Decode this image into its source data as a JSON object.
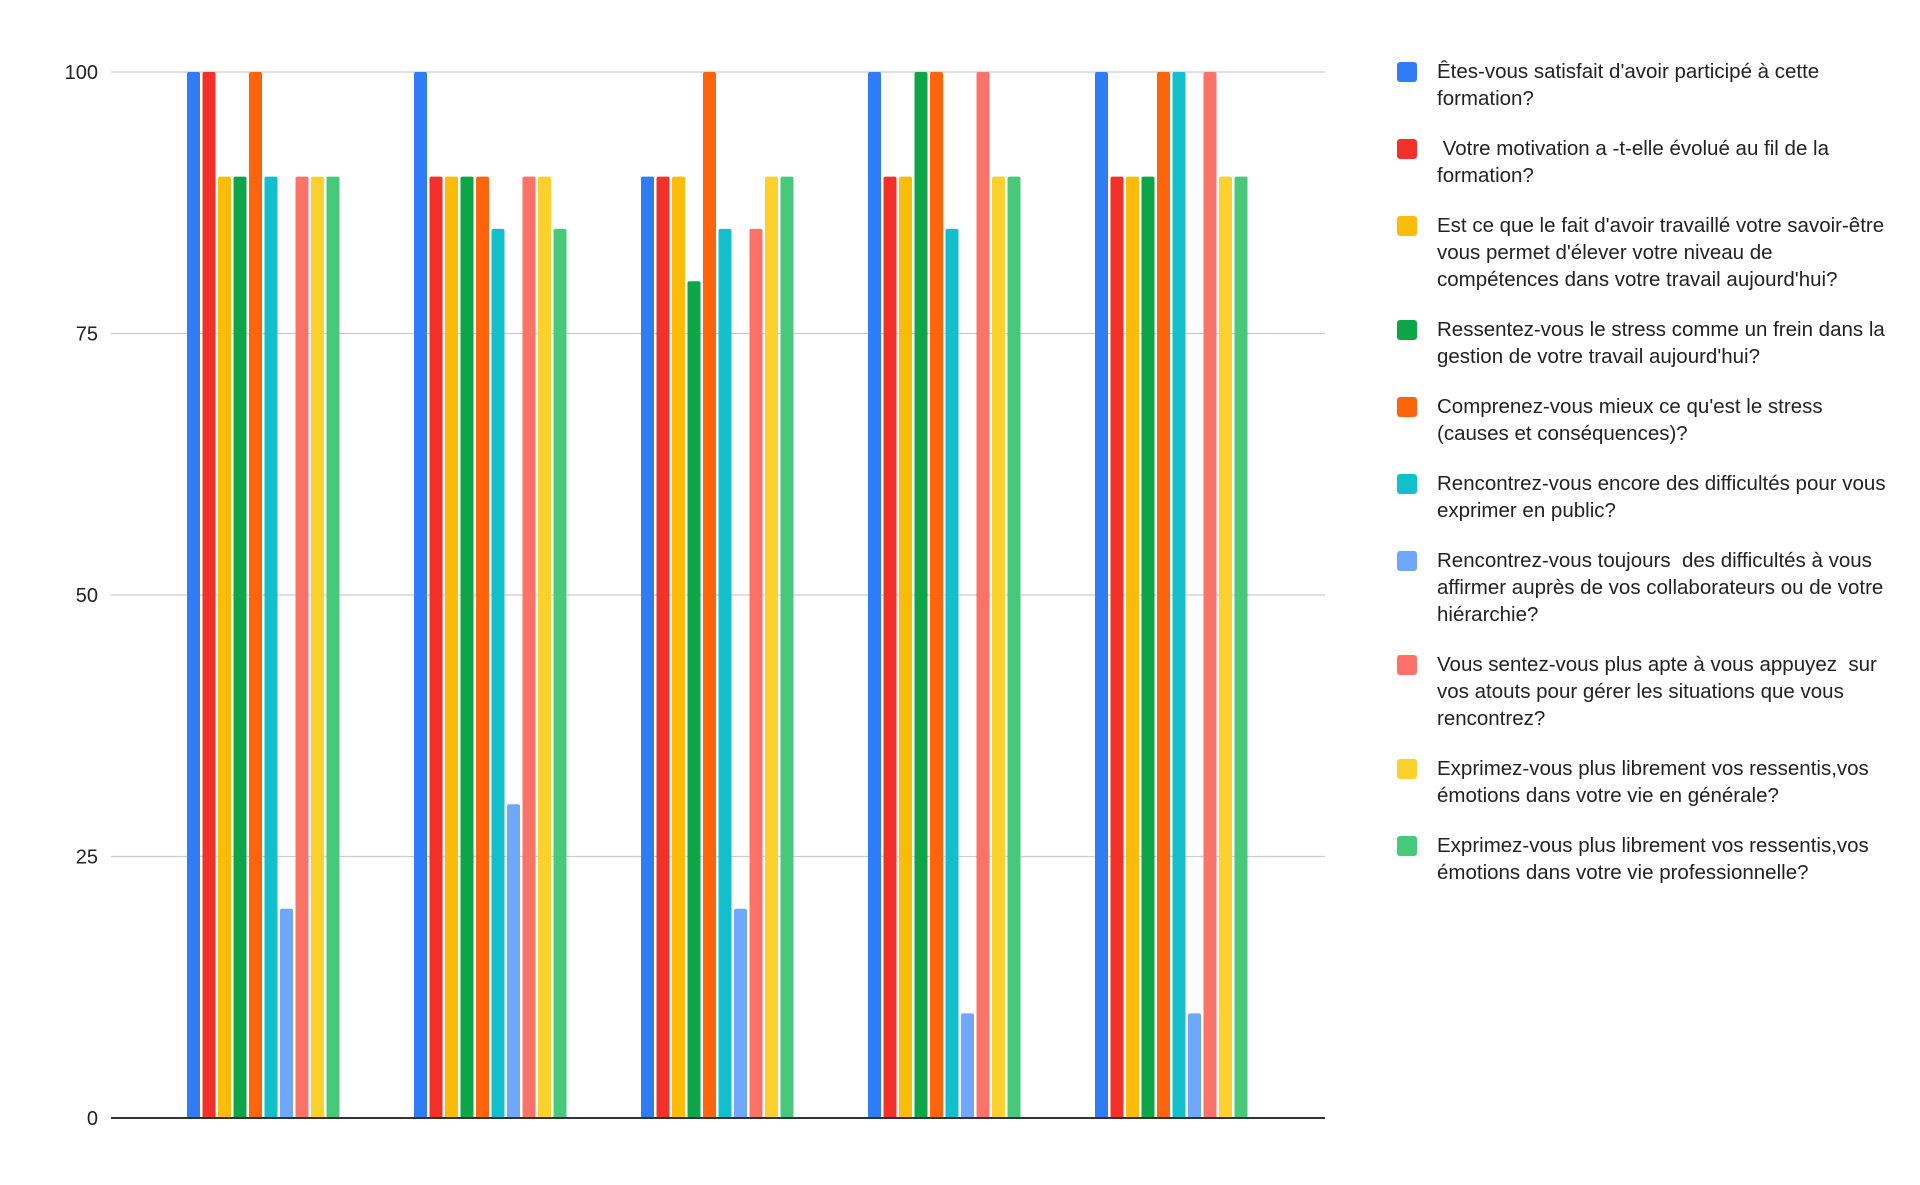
{
  "chart_data": {
    "type": "bar",
    "title": "",
    "xlabel": "",
    "ylabel": "",
    "ylim": [
      0,
      100
    ],
    "yticks": [
      "0",
      "25",
      "50",
      "75",
      "100"
    ],
    "grid": true,
    "legend_position": "right",
    "categories": [
      "",
      "",
      "",
      "",
      ""
    ],
    "series": [
      {
        "name": "Êtes-vous satisfait d'avoir participé à cette formation?",
        "color": "#2f7cf6",
        "values": [
          100,
          100,
          90,
          100,
          100
        ]
      },
      {
        "name": " Votre motivation a -t-elle évolué au fil de la formation?",
        "color": "#f4302b",
        "values": [
          100,
          90,
          90,
          90,
          90
        ]
      },
      {
        "name": "Est ce que le fait d'avoir travaillé votre savoir-être vous permet d'élever votre niveau de compétences dans votre travail aujourd'hui?",
        "color": "#fbbc09",
        "values": [
          90,
          90,
          90,
          90,
          90
        ]
      },
      {
        "name": "Ressentez-vous le stress comme un frein dans la gestion de votre travail aujourd'hui?",
        "color": "#0ea448",
        "values": [
          90,
          90,
          80,
          100,
          90
        ]
      },
      {
        "name": "Comprenez-vous mieux ce qu'est le stress (causes et conséquences)?",
        "color": "#fd640c",
        "values": [
          100,
          90,
          100,
          100,
          100
        ]
      },
      {
        "name": "Rencontrez-vous encore des difficultés pour vous exprimer en public?",
        "color": "#13bfcb",
        "values": [
          90,
          85,
          85,
          85,
          100
        ]
      },
      {
        "name": "Rencontrez-vous toujours  des difficultés à vous affirmer auprès de vos collaborateurs ou de votre hiérarchie?",
        "color": "#6fa8fa",
        "values": [
          20,
          30,
          20,
          10,
          10
        ]
      },
      {
        "name": "Vous sentez-vous plus apte à vous appuyez  sur vos atouts pour gérer les situations que vous rencontrez?",
        "color": "#fb7368",
        "values": [
          90,
          90,
          85,
          100,
          100
        ]
      },
      {
        "name": "Exprimez-vous plus librement vos ressentis,vos émotions dans votre vie en générale?",
        "color": "#fdd12d",
        "values": [
          90,
          90,
          90,
          90,
          90
        ]
      },
      {
        "name": "Exprimez-vous plus librement vos ressentis,vos émotions dans votre vie professionnelle?",
        "color": "#47c87b",
        "values": [
          90,
          85,
          90,
          90,
          90
        ]
      }
    ]
  }
}
